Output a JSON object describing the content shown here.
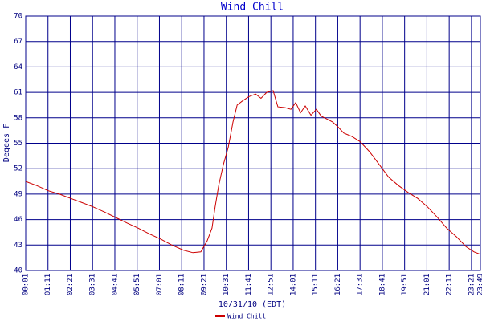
{
  "chart_data": {
    "type": "line",
    "title": "Wind Chill",
    "y_label": "Degees F",
    "x_label": "10/31/10 (EDT)",
    "x": [
      1,
      36,
      72,
      107,
      142,
      178,
      213,
      248,
      286,
      319,
      354,
      390,
      425,
      460,
      496,
      526,
      551,
      571,
      586,
      596,
      607,
      622,
      637,
      652,
      665,
      682,
      702,
      723,
      740,
      758,
      778,
      793,
      816,
      834,
      849,
      864,
      879,
      897,
      914,
      929,
      945,
      965,
      980,
      1000,
      1025,
      1051,
      1081,
      1111,
      1141,
      1172,
      1202,
      1232,
      1263,
      1293,
      1323,
      1353,
      1384,
      1409,
      1429
    ],
    "series": [
      {
        "name": "Wind Chill",
        "color": "#cc0000",
        "values": [
          50.5,
          50.0,
          49.4,
          49.0,
          48.5,
          48.0,
          47.5,
          46.9,
          46.2,
          45.6,
          45.0,
          44.3,
          43.7,
          43.0,
          42.4,
          42.1,
          42.2,
          43.5,
          45.0,
          47.5,
          50.0,
          52.5,
          54.5,
          57.5,
          59.5,
          60.0,
          60.5,
          60.8,
          60.3,
          61.0,
          61.2,
          59.3,
          59.2,
          59.0,
          59.8,
          58.6,
          59.4,
          58.3,
          59.0,
          58.2,
          57.9,
          57.5,
          57.0,
          56.2,
          55.8,
          55.2,
          54.0,
          52.5,
          51.0,
          50.0,
          49.2,
          48.5,
          47.5,
          46.3,
          45.0,
          44.0,
          42.8,
          42.2,
          41.9
        ]
      }
    ],
    "xlim": [
      1,
      1429
    ],
    "xticks": [
      {
        "value": 1,
        "label": "00:01"
      },
      {
        "value": 71,
        "label": "01:11"
      },
      {
        "value": 141,
        "label": "02:21"
      },
      {
        "value": 211,
        "label": "03:31"
      },
      {
        "value": 281,
        "label": "04:41"
      },
      {
        "value": 351,
        "label": "05:51"
      },
      {
        "value": 421,
        "label": "07:01"
      },
      {
        "value": 491,
        "label": "08:11"
      },
      {
        "value": 561,
        "label": "09:21"
      },
      {
        "value": 631,
        "label": "10:31"
      },
      {
        "value": 701,
        "label": "11:41"
      },
      {
        "value": 771,
        "label": "12:51"
      },
      {
        "value": 841,
        "label": "14:01"
      },
      {
        "value": 911,
        "label": "15:11"
      },
      {
        "value": 981,
        "label": "16:21"
      },
      {
        "value": 1051,
        "label": "17:31"
      },
      {
        "value": 1121,
        "label": "18:41"
      },
      {
        "value": 1191,
        "label": "19:51"
      },
      {
        "value": 1261,
        "label": "21:01"
      },
      {
        "value": 1331,
        "label": "22:11"
      },
      {
        "value": 1401,
        "label": "23:21"
      },
      {
        "value": 1429,
        "label": "23:49"
      }
    ],
    "ylim": [
      40,
      70
    ],
    "yticks": [
      40,
      43,
      46,
      49,
      52,
      55,
      58,
      61,
      64,
      67,
      70
    ],
    "grid": true
  }
}
